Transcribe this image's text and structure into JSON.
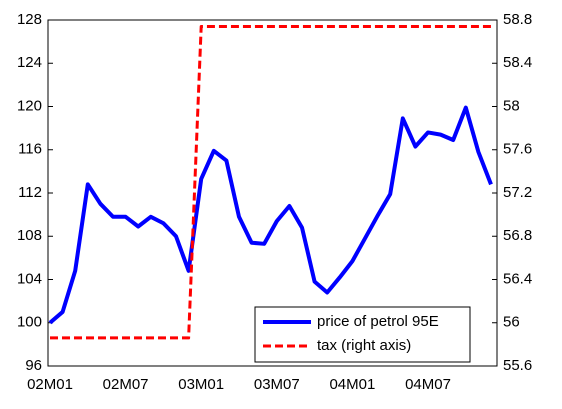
{
  "chart_data": {
    "type": "line",
    "categories": [
      "02M01",
      null,
      null,
      null,
      null,
      null,
      "02M07",
      null,
      null,
      null,
      null,
      null,
      "03M01",
      null,
      null,
      null,
      null,
      null,
      "03M07",
      null,
      null,
      null,
      null,
      null,
      "04M01",
      null,
      null,
      null,
      null,
      null,
      "04M07",
      null,
      null,
      null,
      null,
      null
    ],
    "series": [
      {
        "name": "price of petrol 95E",
        "color": "#0000ff",
        "values": [
          100.0,
          101.0,
          104.8,
          112.8,
          111.0,
          109.8,
          109.8,
          108.9,
          109.8,
          109.2,
          108.0,
          104.8,
          113.3,
          115.9,
          115.0,
          109.8,
          107.4,
          107.3,
          109.4,
          110.8,
          108.8,
          103.8,
          102.8,
          104.2,
          105.7,
          107.8,
          109.9,
          111.9,
          118.9,
          116.3,
          117.6,
          117.4,
          116.9,
          119.9,
          115.8,
          112.8
        ]
      },
      {
        "name": "tax (right axis)",
        "color": "#ff0000",
        "axis": "y2",
        "dashed": true,
        "values": [
          55.86,
          55.86,
          55.86,
          55.86,
          55.86,
          55.86,
          55.86,
          55.86,
          55.86,
          55.86,
          55.86,
          55.86,
          58.74,
          58.74,
          58.74,
          58.74,
          58.74,
          58.74,
          58.74,
          58.74,
          58.74,
          58.74,
          58.74,
          58.74,
          58.74,
          58.74,
          58.74,
          58.74,
          58.74,
          58.74,
          58.74,
          58.74,
          58.74,
          58.74,
          58.74,
          58.74
        ]
      }
    ],
    "ylim": [
      96,
      128
    ],
    "yticks": [
      96,
      100,
      104,
      108,
      112,
      116,
      120,
      124,
      128
    ],
    "y2lim": [
      55.6,
      58.8
    ],
    "y2ticks": [
      55.6,
      56.0,
      56.4,
      56.8,
      57.2,
      57.6,
      58.0,
      58.4,
      58.8
    ],
    "legend": "lower right"
  }
}
